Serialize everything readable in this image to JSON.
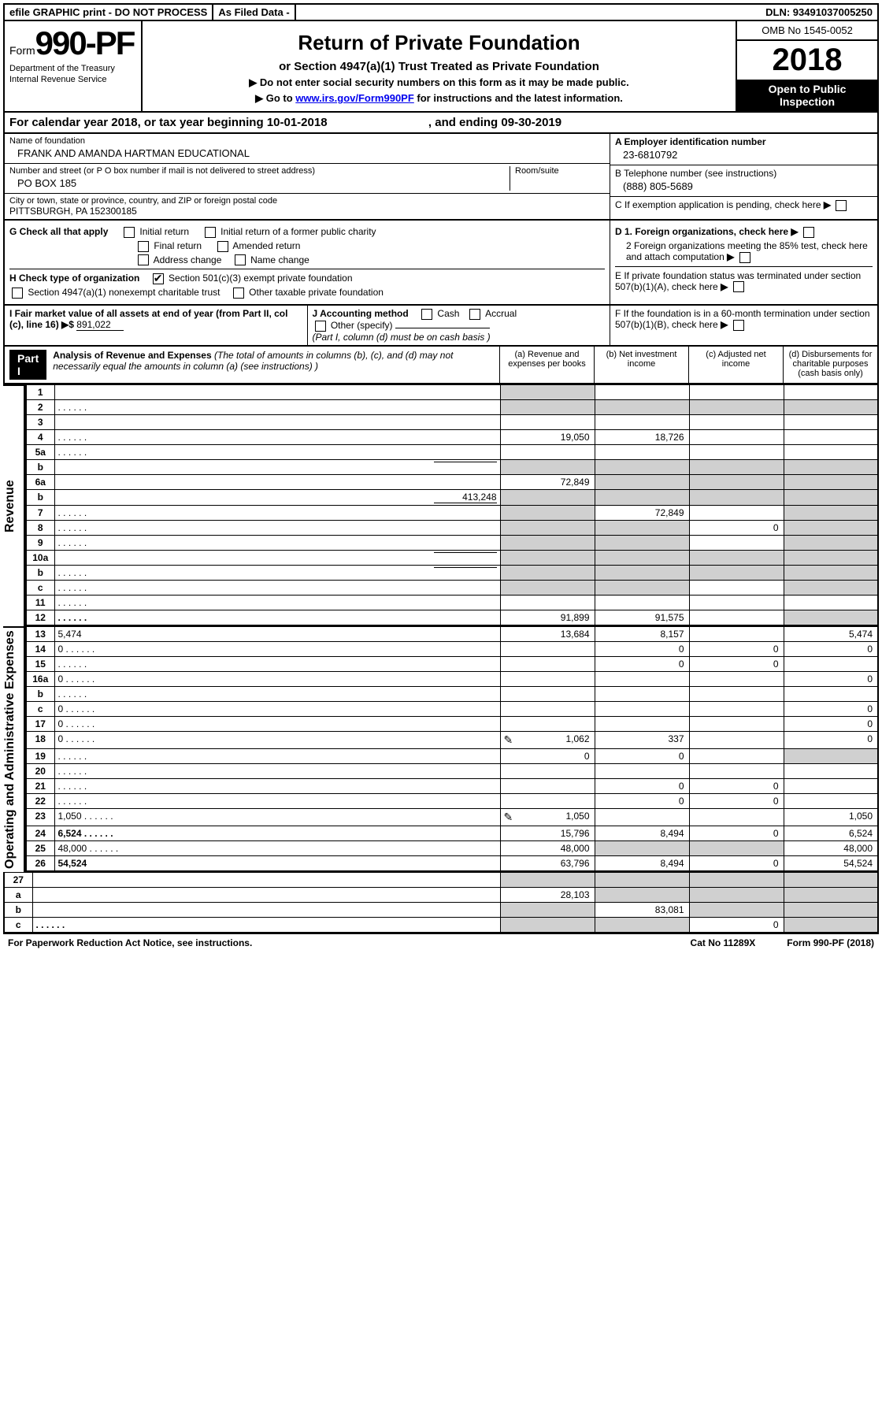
{
  "topbar": {
    "efile": "efile GRAPHIC print - DO NOT PROCESS",
    "asfiled": "As Filed Data -",
    "dln": "DLN: 93491037005250"
  },
  "header": {
    "form_prefix": "Form",
    "form_num": "990-PF",
    "dept1": "Department of the Treasury",
    "dept2": "Internal Revenue Service",
    "title": "Return of Private Foundation",
    "subtitle": "or Section 4947(a)(1) Trust Treated as Private Foundation",
    "note1": "▶ Do not enter social security numbers on this form as it may be made public.",
    "note2_pre": "▶ Go to ",
    "note2_link": "www.irs.gov/Form990PF",
    "note2_post": " for instructions and the latest information.",
    "omb": "OMB No 1545-0052",
    "year": "2018",
    "inspect": "Open to Public Inspection"
  },
  "calyear": {
    "pre": "For calendar year 2018, or tax year beginning ",
    "begin": "10-01-2018",
    "mid": " , and ending ",
    "end": "09-30-2019"
  },
  "info": {
    "name_label": "Name of foundation",
    "name": "FRANK AND AMANDA HARTMAN EDUCATIONAL",
    "addr_label": "Number and street (or P O  box number if mail is not delivered to street address)",
    "addr": "PO BOX 185",
    "room_label": "Room/suite",
    "city_label": "City or town, state or province, country, and ZIP or foreign postal code",
    "city": "PITTSBURGH, PA  152300185",
    "a_label": "A Employer identification number",
    "a_val": "23-6810792",
    "b_label": "B Telephone number (see instructions)",
    "b_val": "(888) 805-5689",
    "c_label": "C If exemption application is pending, check here"
  },
  "g": {
    "label": "G Check all that apply",
    "opts": [
      "Initial return",
      "Initial return of a former public charity",
      "Final return",
      "Amended return",
      "Address change",
      "Name change"
    ],
    "d1": "D 1. Foreign organizations, check here",
    "d2": "2 Foreign organizations meeting the 85% test, check here and attach computation",
    "e": "E  If private foundation status was terminated under section 507(b)(1)(A), check here"
  },
  "h": {
    "label": "H Check type of organization",
    "opt1": "Section 501(c)(3) exempt private foundation",
    "opt2": "Section 4947(a)(1) nonexempt charitable trust",
    "opt3": "Other taxable private foundation"
  },
  "i": {
    "label": "I Fair market value of all assets at end of year (from Part II, col (c), line 16) ▶$ ",
    "val": "891,022"
  },
  "j": {
    "label": "J Accounting method",
    "cash": "Cash",
    "accrual": "Accrual",
    "other": "Other (specify)",
    "note": "(Part I, column (d) must be on cash basis )"
  },
  "f": {
    "label": "F  If the foundation is in a 60-month termination under section 507(b)(1)(B), check here"
  },
  "part1": {
    "badge": "Part I",
    "title": "Analysis of Revenue and Expenses",
    "note": " (The total of amounts in columns (b), (c), and (d) may not necessarily equal the amounts in column (a) (see instructions) )",
    "col_a": "(a)   Revenue and expenses per books",
    "col_b": "(b)  Net investment income",
    "col_c": "(c)  Adjusted net income",
    "col_d": "(d)  Disbursements for charitable purposes (cash basis only)"
  },
  "sidelabels": {
    "rev": "Revenue",
    "exp": "Operating and Administrative Expenses"
  },
  "rows": [
    {
      "n": "1",
      "d": "",
      "a": "",
      "b": "",
      "c": "",
      "sa": 1,
      "sb": 0,
      "sc": 0,
      "sd": 0
    },
    {
      "n": "2",
      "d": "",
      "a": "",
      "b": "",
      "c": "",
      "dots": 1,
      "sa": 1,
      "sb": 1,
      "sc": 1,
      "sd": 1
    },
    {
      "n": "3",
      "d": "",
      "a": "",
      "b": "",
      "c": ""
    },
    {
      "n": "4",
      "d": "",
      "a": "19,050",
      "b": "18,726",
      "c": "",
      "dots": 1
    },
    {
      "n": "5a",
      "d": "",
      "a": "",
      "b": "",
      "c": "",
      "dots": 1
    },
    {
      "n": "b",
      "d": "",
      "a": "",
      "b": "",
      "c": "",
      "sa": 1,
      "sb": 1,
      "sc": 1,
      "sd": 1,
      "inline": 1
    },
    {
      "n": "6a",
      "d": "",
      "a": "72,849",
      "b": "",
      "c": "",
      "sb": 1,
      "sc": 1,
      "sd": 1
    },
    {
      "n": "b",
      "d": "",
      "a": "",
      "b": "",
      "c": "",
      "inline": 1,
      "inlineval": "413,248",
      "sa": 1,
      "sb": 1,
      "sc": 1,
      "sd": 1
    },
    {
      "n": "7",
      "d": "",
      "a": "",
      "b": "72,849",
      "c": "",
      "dots": 1,
      "sa": 1,
      "sd": 1
    },
    {
      "n": "8",
      "d": "",
      "a": "",
      "b": "",
      "c": "0",
      "dots": 1,
      "sa": 1,
      "sb": 1,
      "sd": 1
    },
    {
      "n": "9",
      "d": "",
      "a": "",
      "b": "",
      "c": "",
      "dots": 1,
      "sa": 1,
      "sb": 1,
      "sd": 1
    },
    {
      "n": "10a",
      "d": "",
      "a": "",
      "b": "",
      "c": "",
      "inline": 1,
      "sa": 1,
      "sb": 1,
      "sc": 1,
      "sd": 1
    },
    {
      "n": "b",
      "d": "",
      "a": "",
      "b": "",
      "c": "",
      "inline": 1,
      "dots": 1,
      "sa": 1,
      "sb": 1,
      "sc": 1,
      "sd": 1
    },
    {
      "n": "c",
      "d": "",
      "a": "",
      "b": "",
      "c": "",
      "dots": 1,
      "sa": 1,
      "sb": 1,
      "sd": 1
    },
    {
      "n": "11",
      "d": "",
      "a": "",
      "b": "",
      "c": "",
      "dots": 1
    },
    {
      "n": "12",
      "d": "",
      "a": "91,899",
      "b": "91,575",
      "c": "",
      "bold": 1,
      "dots": 1,
      "sd": 1
    }
  ],
  "exp_rows": [
    {
      "n": "13",
      "d": "5,474",
      "a": "13,684",
      "b": "8,157",
      "c": ""
    },
    {
      "n": "14",
      "d": "0",
      "a": "",
      "b": "0",
      "c": "0",
      "dots": 1
    },
    {
      "n": "15",
      "d": "",
      "a": "",
      "b": "0",
      "c": "0",
      "dots": 1
    },
    {
      "n": "16a",
      "d": "0",
      "a": "",
      "b": "",
      "c": "",
      "dots": 1
    },
    {
      "n": "b",
      "d": "",
      "a": "",
      "b": "",
      "c": "",
      "dots": 1
    },
    {
      "n": "c",
      "d": "0",
      "a": "",
      "b": "",
      "c": "",
      "dots": 1
    },
    {
      "n": "17",
      "d": "0",
      "a": "",
      "b": "",
      "c": "",
      "dots": 1
    },
    {
      "n": "18",
      "d": "0",
      "a": "1,062",
      "b": "337",
      "c": "",
      "dots": 1,
      "pencil": 1
    },
    {
      "n": "19",
      "d": "",
      "a": "0",
      "b": "0",
      "c": "",
      "dots": 1,
      "sd": 1
    },
    {
      "n": "20",
      "d": "",
      "a": "",
      "b": "",
      "c": "",
      "dots": 1
    },
    {
      "n": "21",
      "d": "",
      "a": "",
      "b": "0",
      "c": "0",
      "dots": 1
    },
    {
      "n": "22",
      "d": "",
      "a": "",
      "b": "0",
      "c": "0",
      "dots": 1
    },
    {
      "n": "23",
      "d": "1,050",
      "a": "1,050",
      "b": "",
      "c": "",
      "dots": 1,
      "pencil": 1
    },
    {
      "n": "24",
      "d": "6,524",
      "a": "15,796",
      "b": "8,494",
      "c": "0",
      "bold": 1,
      "dots": 1
    },
    {
      "n": "25",
      "d": "48,000",
      "a": "48,000",
      "b": "",
      "c": "",
      "dots": 1,
      "sb": 1,
      "sc": 1
    },
    {
      "n": "26",
      "d": "54,524",
      "a": "63,796",
      "b": "8,494",
      "c": "0",
      "bold": 1
    }
  ],
  "net_rows": [
    {
      "n": "27",
      "d": "",
      "a": "",
      "b": "",
      "c": "",
      "sa": 1,
      "sb": 1,
      "sc": 1,
      "sd": 1
    },
    {
      "n": "a",
      "d": "",
      "a": "28,103",
      "b": "",
      "c": "",
      "bold": 1,
      "sb": 1,
      "sc": 1,
      "sd": 1
    },
    {
      "n": "b",
      "d": "",
      "a": "",
      "b": "83,081",
      "c": "",
      "bold": 1,
      "sa": 1,
      "sc": 1,
      "sd": 1
    },
    {
      "n": "c",
      "d": "",
      "a": "",
      "b": "",
      "c": "0",
      "bold": 1,
      "dots": 1,
      "sa": 1,
      "sb": 1,
      "sd": 1
    }
  ],
  "footer": {
    "left": "For Paperwork Reduction Act Notice, see instructions.",
    "mid": "Cat No 11289X",
    "right": "Form 990-PF (2018)"
  }
}
